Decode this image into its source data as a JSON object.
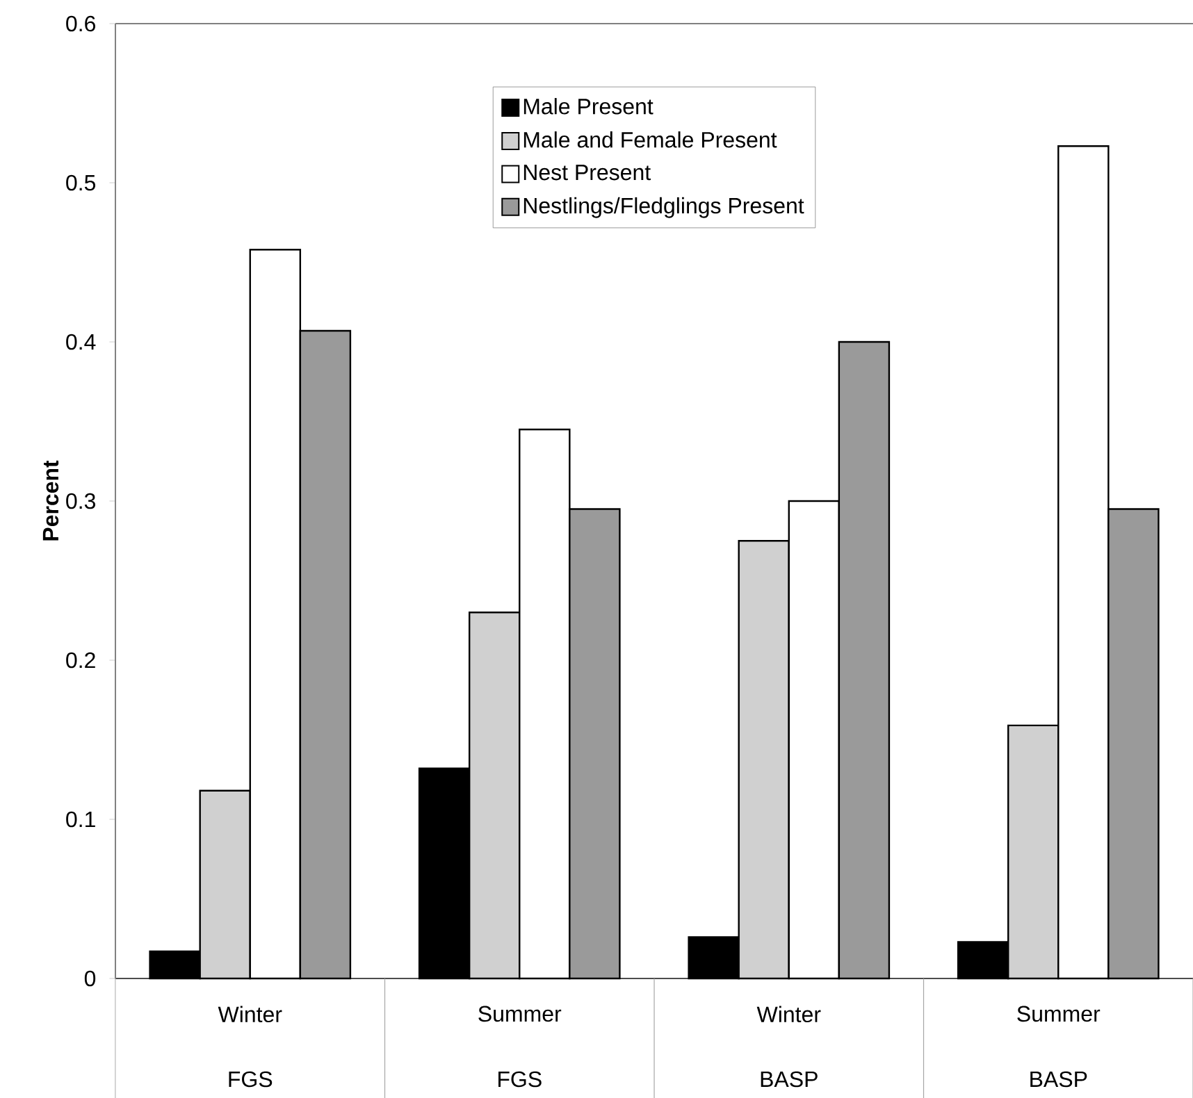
{
  "chart_data": {
    "type": "bar",
    "ylabel": "Percent",
    "categories": [
      "Winter",
      "Summer",
      "Winter",
      "Summer"
    ],
    "annotations": [
      "FGS",
      "FGS",
      "BASP",
      "BASP"
    ],
    "series": [
      {
        "name": "Male Present",
        "color": "#000000",
        "values": [
          0.017,
          0.132,
          0.026,
          0.023
        ]
      },
      {
        "name": "Male and Female Present",
        "color": "#d0d0d0",
        "values": [
          0.118,
          0.23,
          0.275,
          0.159
        ]
      },
      {
        "name": "Nest Present",
        "color": "#ffffff",
        "values": [
          0.458,
          0.345,
          0.3,
          0.523
        ]
      },
      {
        "name": "Nestlings/Fledglings Present",
        "color": "#9a9a9a",
        "values": [
          0.407,
          0.295,
          0.4,
          0.295
        ]
      }
    ],
    "ylim": [
      0,
      0.6
    ],
    "yticks": [
      0,
      0.1,
      0.2,
      0.3,
      0.4,
      0.5,
      0.6
    ],
    "grid": false,
    "legend": "top"
  }
}
